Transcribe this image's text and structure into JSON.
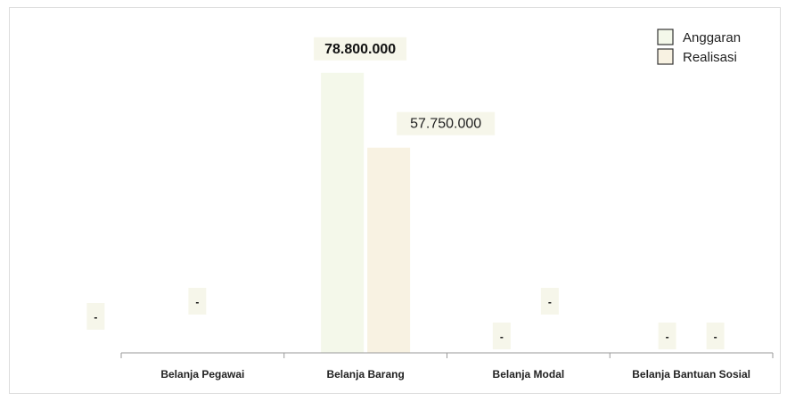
{
  "chart_data": {
    "type": "bar",
    "categories": [
      "Belanja Pegawai",
      "Belanja Barang",
      "Belanja Modal",
      "Belanja Bantuan Sosial"
    ],
    "series": [
      {
        "name": "Anggaran",
        "values": [
          0,
          78800000,
          0,
          0
        ],
        "labels": [
          "-",
          "78.800.000",
          "-",
          "-"
        ]
      },
      {
        "name": "Realisasi",
        "values": [
          0,
          57750000,
          0,
          0
        ],
        "labels": [
          "-",
          "57.750.000",
          "-",
          "-"
        ]
      }
    ],
    "title": "",
    "xlabel": "",
    "ylabel": "",
    "ylim": [
      0,
      82000000
    ],
    "grid": false,
    "legend": "top-right",
    "colors": {
      "Anggaran": "#f4f8ea",
      "Realisasi": "#f8f2e2",
      "label_box": "#f6f6ea",
      "axis": "#9a9a9a"
    }
  }
}
